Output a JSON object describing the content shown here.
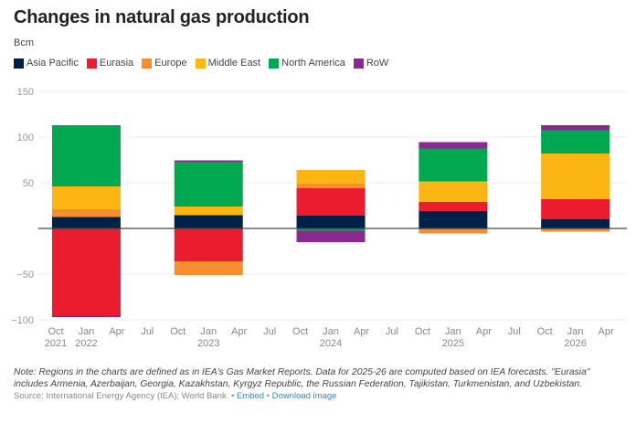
{
  "title": "Changes in natural gas production",
  "unit": "Bcm",
  "legend": [
    {
      "name": "Asia Pacific",
      "color": "#002147"
    },
    {
      "name": "Eurasia",
      "color": "#ec1c2f"
    },
    {
      "name": "Europe",
      "color": "#f68e2f"
    },
    {
      "name": "Middle East",
      "color": "#fcb614"
    },
    {
      "name": "North America",
      "color": "#00a94f"
    },
    {
      "name": "RoW",
      "color": "#8a2a90"
    }
  ],
  "chart_data": {
    "type": "bar",
    "stacked": true,
    "title": "Changes in natural gas production",
    "ylabel": "Bcm",
    "xlabel": "",
    "ylim": [
      -100,
      150
    ],
    "yticks": [
      150,
      100,
      50,
      0,
      -50,
      -100
    ],
    "ytick_labels": [
      "150",
      "100",
      "50",
      "",
      "−50",
      "−100"
    ],
    "grid": true,
    "legend_position": "top-left",
    "x_ticks": [
      {
        "label": "Oct",
        "year": "2021"
      },
      {
        "label": "Jan",
        "year": "2022"
      },
      {
        "label": "Apr",
        "year": ""
      },
      {
        "label": "Jul",
        "year": ""
      },
      {
        "label": "Oct",
        "year": ""
      },
      {
        "label": "Jan",
        "year": "2023"
      },
      {
        "label": "Apr",
        "year": ""
      },
      {
        "label": "Jul",
        "year": ""
      },
      {
        "label": "Oct",
        "year": ""
      },
      {
        "label": "Jan",
        "year": "2024"
      },
      {
        "label": "Apr",
        "year": ""
      },
      {
        "label": "Jul",
        "year": ""
      },
      {
        "label": "Oct",
        "year": ""
      },
      {
        "label": "Jan",
        "year": "2025"
      },
      {
        "label": "Apr",
        "year": ""
      },
      {
        "label": "Jul",
        "year": ""
      },
      {
        "label": "Oct",
        "year": ""
      },
      {
        "label": "Jan",
        "year": "2026"
      },
      {
        "label": "Apr",
        "year": ""
      }
    ],
    "categories": [
      "2022",
      "2023",
      "2024",
      "2025",
      "2026"
    ],
    "series": [
      {
        "name": "Asia Pacific",
        "color": "#002147",
        "values": [
          12.5,
          14.5,
          14,
          19,
          10
        ]
      },
      {
        "name": "Eurasia",
        "color": "#ec1c2f",
        "values": [
          -95,
          -36,
          30,
          10,
          22
        ]
      },
      {
        "name": "Europe",
        "color": "#f68e2f",
        "values": [
          8.5,
          -15,
          5,
          -5.5,
          -3.5
        ]
      },
      {
        "name": "Middle East",
        "color": "#fcb614",
        "values": [
          25,
          9.5,
          15,
          22.5,
          50
        ]
      },
      {
        "name": "North America",
        "color": "#00a94f",
        "values": [
          67,
          49,
          -2.5,
          36,
          25.5
        ]
      },
      {
        "name": "RoW",
        "color": "#8a2a90",
        "values": [
          -2,
          1.5,
          -12.5,
          7,
          5.5
        ]
      }
    ]
  },
  "note": "Note: Regions in the charts are defined as in IEA's Gas Market Reports. Data for 2025-26 are computed based on IEA forecasts. \"Eurasia\" includes Armenia, Azerbaijan, Georgia, Kazakhstan, Kyrgyz Republic, the Russian Federation, Tajikistan, Turkmenistan, and Uzbekistan.",
  "source": {
    "text": "Source: International Energy Agency (IEA); World Bank. • ",
    "embed": "Embed",
    "separator": " • ",
    "download": "Download image"
  }
}
